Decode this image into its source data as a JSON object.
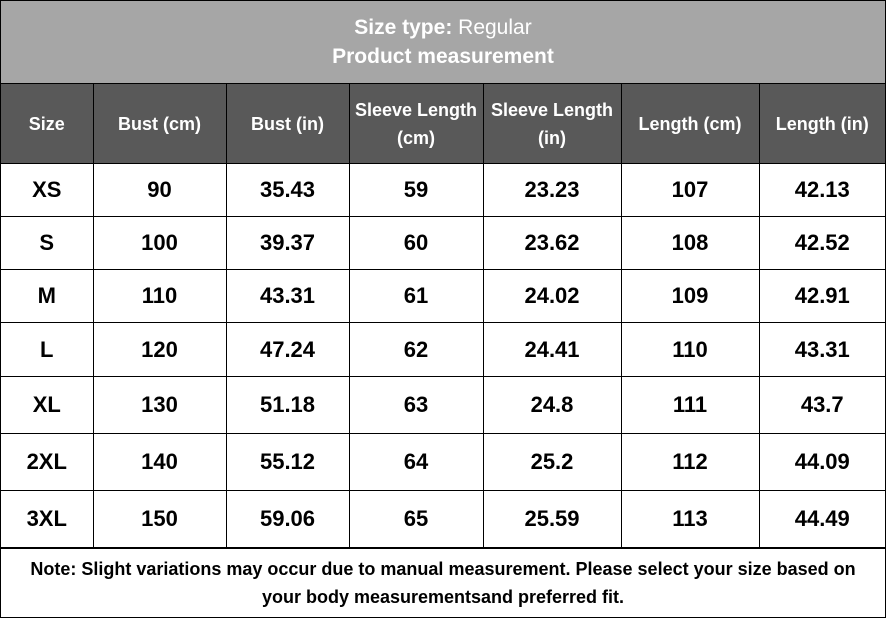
{
  "header": {
    "size_type_label": "Size type:",
    "size_type_value": "Regular",
    "title": "Product measurement"
  },
  "table": {
    "columns": [
      "Size",
      "Bust (cm)",
      "Bust (in)",
      "Sleeve Length (cm)",
      "Sleeve Length (in)",
      "Length (cm)",
      "Length (in)"
    ],
    "rows": [
      [
        "XS",
        90,
        35.43,
        59,
        23.23,
        107,
        42.13
      ],
      [
        "S",
        100,
        39.37,
        60,
        23.62,
        108,
        42.52
      ],
      [
        "M",
        110,
        43.31,
        61,
        24.02,
        109,
        42.91
      ],
      [
        "L",
        120,
        47.24,
        62,
        24.41,
        110,
        43.31
      ],
      [
        "XL",
        130,
        51.18,
        63,
        24.8,
        111,
        43.7
      ],
      [
        "2XL",
        140,
        55.12,
        64,
        25.2,
        112,
        44.09
      ],
      [
        "3XL",
        150,
        59.06,
        65,
        25.59,
        113,
        44.49
      ]
    ]
  },
  "note": "Note: Slight variations may occur due to manual measurement. Please select your size based on your body measurementsand preferred fit."
}
